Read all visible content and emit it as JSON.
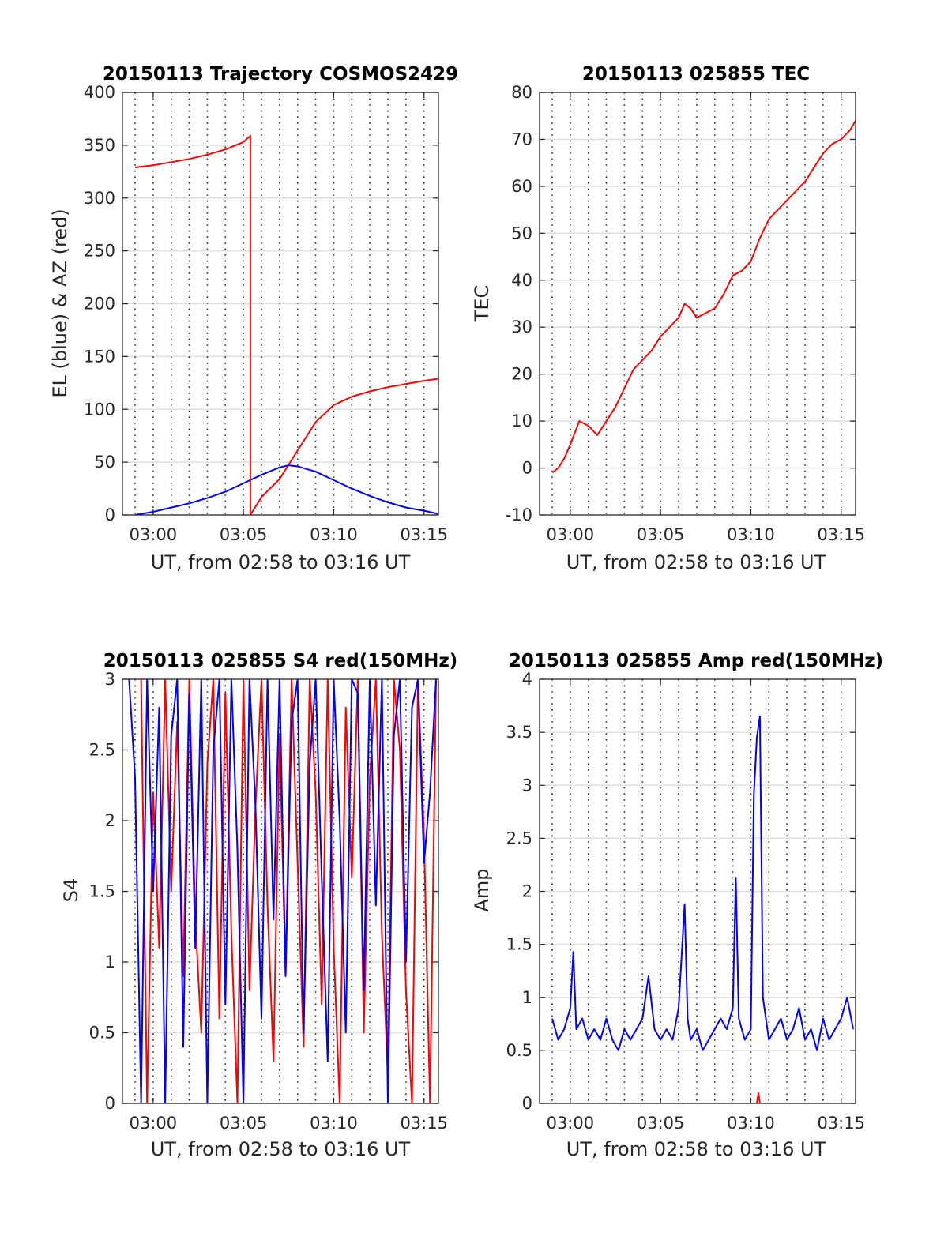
{
  "colors": {
    "red": "#ff0000",
    "blue": "#0000ff",
    "grid": "#dfdfdf",
    "axes": "#262626"
  },
  "chart_data": [
    {
      "type": "line",
      "title": "20150113 Trajectory COSMOS2429",
      "xlabel": "UT, from 02:58 to 03:16 UT",
      "ylabel": "EL (blue) & AZ (red)",
      "xlim": [
        "02:58:18",
        "03:15:48"
      ],
      "ylim": [
        0,
        400
      ],
      "xticks": [
        "03:00",
        "03:05",
        "03:10",
        "03:15"
      ],
      "yticks": [
        "0",
        "50",
        "100",
        "150",
        "200",
        "250",
        "300",
        "350",
        "400"
      ],
      "vertical_grid_interval_min": 1,
      "grid": true,
      "series": [
        {
          "color": "red",
          "x": [
            "02:59:00",
            "03:00:00",
            "03:01:00",
            "03:02:00",
            "03:03:00",
            "03:04:00",
            "03:05:00",
            "03:05:23",
            "03:05:23",
            "03:06:00",
            "03:07:00",
            "03:08:00",
            "03:09:00",
            "03:10:00",
            "03:11:00",
            "03:12:00",
            "03:13:00",
            "03:14:00",
            "03:15:00",
            "03:15:48"
          ],
          "values": [
            329,
            331,
            334,
            337,
            341,
            346,
            353,
            359,
            0,
            17,
            34,
            61,
            88,
            104,
            112,
            117,
            121,
            124,
            127,
            129
          ]
        },
        {
          "color": "blue",
          "x": [
            "02:59:00",
            "03:00:00",
            "03:01:00",
            "03:02:00",
            "03:03:00",
            "03:04:00",
            "03:05:00",
            "03:06:00",
            "03:07:00",
            "03:07:30",
            "03:08:00",
            "03:09:00",
            "03:10:00",
            "03:11:00",
            "03:12:00",
            "03:13:00",
            "03:14:00",
            "03:15:00",
            "03:15:48"
          ],
          "values": [
            0,
            3,
            7,
            11,
            16,
            22,
            30,
            38,
            45,
            47,
            46,
            41,
            33,
            25,
            18,
            12,
            7,
            4,
            1
          ]
        }
      ]
    },
    {
      "type": "line",
      "title": "20150113 025855 TEC",
      "xlabel": "UT, from 02:58 to 03:16 UT",
      "ylabel": "TEC",
      "xlim": [
        "02:58:18",
        "03:15:48"
      ],
      "ylim": [
        -10,
        80
      ],
      "xticks": [
        "03:00",
        "03:05",
        "03:10",
        "03:15"
      ],
      "yticks": [
        "-10",
        "0",
        "10",
        "20",
        "30",
        "40",
        "50",
        "60",
        "70",
        "80"
      ],
      "vertical_grid_interval_min": 1,
      "grid": true,
      "series": [
        {
          "color": "red",
          "x": [
            "02:59:00",
            "02:59:20",
            "02:59:40",
            "03:00:00",
            "03:00:30",
            "03:01:00",
            "03:01:30",
            "03:02:00",
            "03:02:30",
            "03:03:00",
            "03:03:30",
            "03:04:00",
            "03:04:30",
            "03:05:00",
            "03:05:30",
            "03:06:00",
            "03:06:20",
            "03:06:40",
            "03:07:00",
            "03:07:30",
            "03:08:00",
            "03:08:30",
            "03:09:00",
            "03:09:30",
            "03:10:00",
            "03:10:30",
            "03:11:00",
            "03:11:30",
            "03:12:00",
            "03:12:30",
            "03:13:00",
            "03:13:30",
            "03:14:00",
            "03:14:30",
            "03:15:00",
            "03:15:30",
            "03:15:48"
          ],
          "values": [
            -1,
            0,
            2,
            5,
            10,
            9,
            7,
            10,
            13,
            17,
            21,
            23,
            25,
            28,
            30,
            32,
            35,
            34,
            32,
            33,
            34,
            37,
            41,
            42,
            44,
            49,
            53,
            55,
            57,
            59,
            61,
            64,
            67,
            69,
            70,
            72,
            74
          ]
        }
      ]
    },
    {
      "type": "line",
      "title": "20150113 025855 S4 red(150MHz)",
      "xlabel": "UT, from 02:58 to 03:16 UT",
      "ylabel": "S4",
      "xlim": [
        "02:58:18",
        "03:15:48"
      ],
      "ylim": [
        0,
        3
      ],
      "xticks": [
        "03:00",
        "03:05",
        "03:10",
        "03:15"
      ],
      "yticks": [
        "0",
        "0.5",
        "1",
        "1.5",
        "2",
        "2.5",
        "3"
      ],
      "vertical_grid_interval_min": 1,
      "grid": true,
      "series": [
        {
          "color": "red",
          "x": [
            "02:59:20",
            "02:59:40",
            "03:00:00",
            "03:00:20",
            "03:00:40",
            "03:01:00",
            "03:01:20",
            "03:01:40",
            "03:02:00",
            "03:02:20",
            "03:02:40",
            "03:03:00",
            "03:03:20",
            "03:03:40",
            "03:04:00",
            "03:04:20",
            "03:04:40",
            "03:05:00",
            "03:05:20",
            "03:05:40",
            "03:06:00",
            "03:06:20",
            "03:06:40",
            "03:07:00",
            "03:07:20",
            "03:07:40",
            "03:08:00",
            "03:08:20",
            "03:08:40",
            "03:09:00",
            "03:09:20",
            "03:09:40",
            "03:10:00",
            "03:10:20",
            "03:10:40",
            "03:11:00",
            "03:11:20",
            "03:11:40",
            "03:12:00",
            "03:12:20",
            "03:12:40",
            "03:13:00",
            "03:13:20",
            "03:13:40",
            "03:14:00",
            "03:14:20",
            "03:14:40",
            "03:15:00",
            "03:15:20",
            "03:15:40"
          ],
          "values": [
            3,
            0,
            2.2,
            1.1,
            3,
            1.5,
            2.7,
            0.9,
            3,
            1.3,
            0.5,
            2.4,
            3,
            0.6,
            2.9,
            1.2,
            0,
            3,
            0.8,
            2.1,
            3,
            1.4,
            0.3,
            2.6,
            0.9,
            3,
            1.7,
            0.4,
            3,
            2.2,
            0.7,
            3,
            1.1,
            0,
            2.8,
            1.6,
            3,
            0.5,
            2.3,
            3,
            1.2,
            0.2,
            3,
            2.5,
            0.8,
            0,
            3,
            1.9,
            0,
            3
          ]
        },
        {
          "color": "blue",
          "x": [
            "02:58:40",
            "02:59:00",
            "02:59:20",
            "02:59:40",
            "03:00:00",
            "03:00:20",
            "03:00:40",
            "03:01:00",
            "03:01:20",
            "03:01:40",
            "03:02:00",
            "03:02:20",
            "03:02:40",
            "03:03:00",
            "03:03:20",
            "03:03:40",
            "03:04:00",
            "03:04:20",
            "03:04:40",
            "03:05:00",
            "03:05:20",
            "03:05:40",
            "03:06:00",
            "03:06:20",
            "03:06:40",
            "03:07:00",
            "03:07:20",
            "03:07:40",
            "03:08:00",
            "03:08:20",
            "03:08:40",
            "03:09:00",
            "03:09:20",
            "03:09:40",
            "03:10:00",
            "03:10:20",
            "03:10:40",
            "03:11:00",
            "03:11:20",
            "03:11:40",
            "03:12:00",
            "03:12:20",
            "03:12:40",
            "03:13:00",
            "03:13:20",
            "03:13:40",
            "03:14:00",
            "03:14:20",
            "03:14:40",
            "03:15:00",
            "03:15:20",
            "03:15:40"
          ],
          "values": [
            3,
            2.3,
            0,
            3,
            1.5,
            2.8,
            0,
            2.6,
            3,
            0.4,
            2.9,
            1.1,
            3,
            0,
            2.5,
            3,
            0.7,
            3,
            1.8,
            0,
            3,
            2.1,
            0.6,
            3,
            1.3,
            3,
            0.9,
            2.7,
            3,
            0.5,
            2.4,
            3,
            1.6,
            0.3,
            3,
            2,
            0.5,
            3,
            2.9,
            0.8,
            3,
            1.4,
            3,
            0,
            2.6,
            3,
            1,
            2.8,
            3,
            1.7,
            2.2,
            3
          ]
        }
      ]
    },
    {
      "type": "line",
      "title": "20150113 025855 Amp red(150MHz)",
      "xlabel": "UT, from 02:58 to 03:16 UT",
      "ylabel": "Amp",
      "xlim": [
        "02:58:18",
        "03:15:48"
      ],
      "ylim": [
        0,
        4
      ],
      "xticks": [
        "03:00",
        "03:05",
        "03:10",
        "03:15"
      ],
      "yticks": [
        "0",
        "0.5",
        "1",
        "1.5",
        "2",
        "2.5",
        "3",
        "3.5",
        "4"
      ],
      "vertical_grid_interval_min": 1,
      "grid": true,
      "series": [
        {
          "color": "red",
          "x": [
            "03:10:20",
            "03:10:25",
            "03:10:30"
          ],
          "values": [
            0,
            0.1,
            0
          ]
        },
        {
          "color": "blue",
          "x": [
            "02:59:00",
            "02:59:20",
            "02:59:40",
            "03:00:00",
            "03:00:10",
            "03:00:20",
            "03:00:40",
            "03:01:00",
            "03:01:20",
            "03:01:40",
            "03:02:00",
            "03:02:20",
            "03:02:40",
            "03:03:00",
            "03:03:20",
            "03:03:40",
            "03:04:00",
            "03:04:20",
            "03:04:40",
            "03:05:00",
            "03:05:20",
            "03:05:40",
            "03:06:00",
            "03:06:20",
            "03:06:30",
            "03:06:40",
            "03:07:00",
            "03:07:20",
            "03:07:40",
            "03:08:00",
            "03:08:20",
            "03:08:40",
            "03:09:00",
            "03:09:10",
            "03:09:20",
            "03:09:40",
            "03:10:00",
            "03:10:10",
            "03:10:20",
            "03:10:30",
            "03:10:40",
            "03:11:00",
            "03:11:20",
            "03:11:40",
            "03:12:00",
            "03:12:20",
            "03:12:40",
            "03:13:00",
            "03:13:20",
            "03:13:40",
            "03:14:00",
            "03:14:20",
            "03:14:40",
            "03:15:00",
            "03:15:20",
            "03:15:40"
          ],
          "values": [
            0.8,
            0.6,
            0.7,
            0.9,
            1.43,
            0.7,
            0.8,
            0.6,
            0.7,
            0.6,
            0.8,
            0.6,
            0.5,
            0.7,
            0.6,
            0.7,
            0.8,
            1.2,
            0.7,
            0.6,
            0.7,
            0.6,
            0.9,
            1.88,
            0.8,
            0.6,
            0.7,
            0.5,
            0.6,
            0.7,
            0.8,
            0.7,
            0.9,
            2.13,
            0.8,
            0.6,
            0.7,
            2.9,
            3.45,
            3.65,
            1,
            0.6,
            0.7,
            0.8,
            0.6,
            0.7,
            0.9,
            0.6,
            0.7,
            0.5,
            0.8,
            0.6,
            0.7,
            0.8,
            1,
            0.7
          ]
        }
      ]
    }
  ]
}
